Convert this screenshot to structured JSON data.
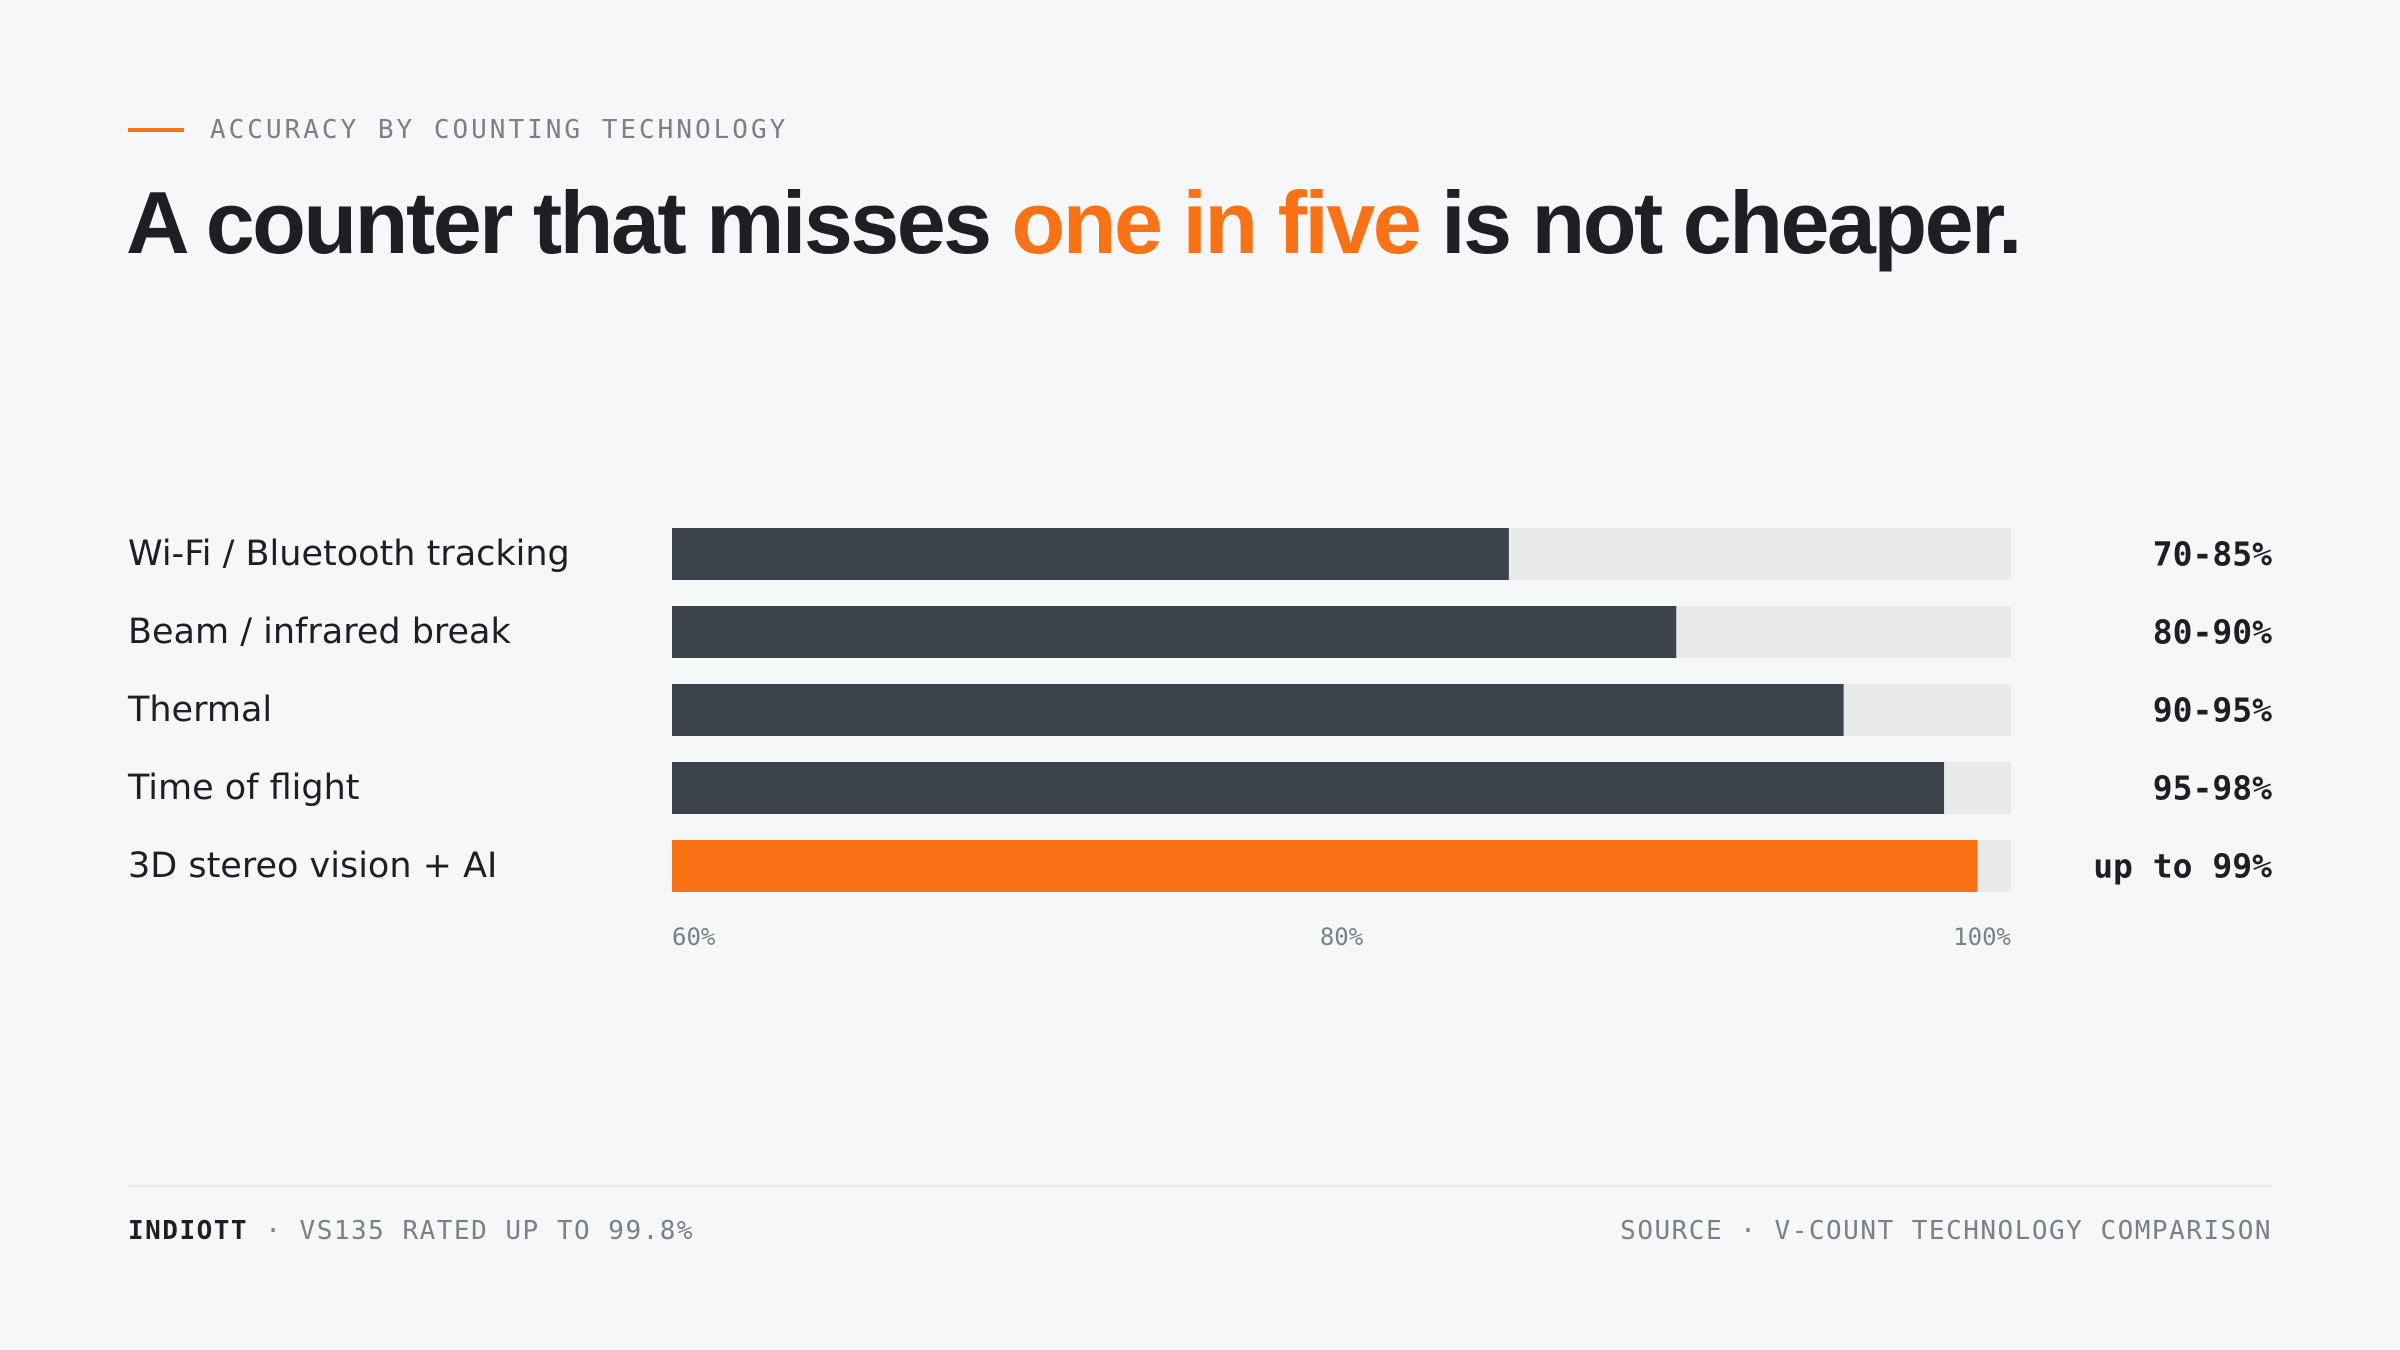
{
  "eyebrow": "ACCURACY BY COUNTING TECHNOLOGY",
  "headline": {
    "before": "A counter that misses ",
    "highlight": "one in five",
    "after": " is not cheaper."
  },
  "colors": {
    "accent": "#f97316",
    "bar": "#3d434b",
    "track": "#e8eaec",
    "background": "#f6f7f9",
    "text": "#1d1f24",
    "muted": "#7a8089"
  },
  "chart_data": {
    "type": "bar",
    "orientation": "horizontal",
    "categories": [
      "Wi-Fi / Bluetooth tracking",
      "Beam / infrared break",
      "Thermal",
      "Time of flight",
      "3D stereo vision + AI"
    ],
    "values": [
      85,
      90,
      95,
      98,
      99
    ],
    "value_labels": [
      "70-85%",
      "80-90%",
      "90-95%",
      "95-98%",
      "up to 99%"
    ],
    "highlight_index": 4,
    "xlim": [
      60,
      100
    ],
    "xticks": [
      60,
      80,
      100
    ],
    "xtick_labels": [
      "60%",
      "80%",
      "100%"
    ],
    "grid": false,
    "legend": "none"
  },
  "footer": {
    "brand": "INDIOTT",
    "separator": " · ",
    "note": "VS135 RATED UP TO 99.8%",
    "source": "SOURCE · V-COUNT TECHNOLOGY COMPARISON"
  }
}
